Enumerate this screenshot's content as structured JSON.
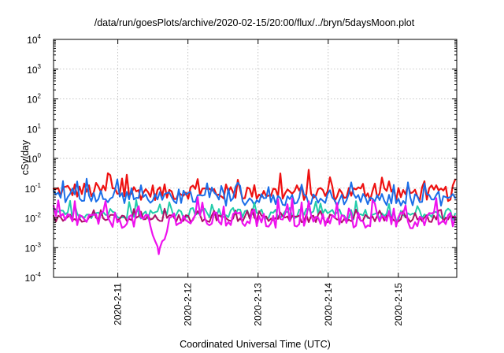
{
  "chart_data": {
    "type": "line",
    "title": "/data/run/goesPlots/archive/2020-02-15/20:00/flux/../bryn/5daysMoon.plot",
    "xlabel": "Coordinated Universal Time (UTC)",
    "ylabel": "cSv/day",
    "xlim": [
      "2020-02-10T02:00",
      "2020-02-15T20:00"
    ],
    "ylim": [
      0.0001,
      10000
    ],
    "yscale": "log",
    "grid": true,
    "legend": "none",
    "x_ticks": [
      "2020-2-11",
      "2020-2-12",
      "2020-2-13",
      "2020-2-14",
      "2020-2-15"
    ],
    "y_ticks": [
      {
        "base": "10",
        "exp": "-4",
        "value": 0.0001
      },
      {
        "base": "10",
        "exp": "-3",
        "value": 0.001
      },
      {
        "base": "10",
        "exp": "-2",
        "value": 0.01
      },
      {
        "base": "10",
        "exp": "-1",
        "value": 0.1
      },
      {
        "base": "10",
        "exp": "0",
        "value": 1
      },
      {
        "base": "10",
        "exp": "1",
        "value": 10
      },
      {
        "base": "10",
        "exp": "2",
        "value": 100
      },
      {
        "base": "10",
        "exp": "3",
        "value": 1000
      },
      {
        "base": "10",
        "exp": "4",
        "value": 10000
      }
    ],
    "series": [
      {
        "color": "#ee1111",
        "x": [
          "2020-02-10T02:00",
          "2020-02-10T10:00",
          "2020-02-10T18:00",
          "2020-02-11T02:00",
          "2020-02-11T10:00",
          "2020-02-11T18:00",
          "2020-02-12T02:00",
          "2020-02-12T10:00",
          "2020-02-12T18:00",
          "2020-02-13T02:00",
          "2020-02-13T10:00",
          "2020-02-13T18:00",
          "2020-02-14T02:00",
          "2020-02-14T10:00",
          "2020-02-14T18:00",
          "2020-02-15T02:00",
          "2020-02-15T10:00",
          "2020-02-15T20:00"
        ],
        "values": [
          0.065,
          0.07,
          0.068,
          0.06,
          0.062,
          0.058,
          0.07,
          0.06,
          0.062,
          0.06,
          0.058,
          0.06,
          0.056,
          0.058,
          0.055,
          0.058,
          0.056,
          0.055
        ]
      },
      {
        "color": "#1a6ee8",
        "x": [
          "2020-02-10T02:00",
          "2020-02-10T10:00",
          "2020-02-10T18:00",
          "2020-02-11T02:00",
          "2020-02-11T10:00",
          "2020-02-11T18:00",
          "2020-02-12T02:00",
          "2020-02-12T10:00",
          "2020-02-12T18:00",
          "2020-02-13T02:00",
          "2020-02-13T10:00",
          "2020-02-13T18:00",
          "2020-02-14T02:00",
          "2020-02-14T10:00",
          "2020-02-14T18:00",
          "2020-02-15T02:00",
          "2020-02-15T10:00",
          "2020-02-15T20:00"
        ],
        "values": [
          0.045,
          0.048,
          0.05,
          0.042,
          0.04,
          0.038,
          0.04,
          0.037,
          0.036,
          0.035,
          0.034,
          0.035,
          0.034,
          0.034,
          0.033,
          0.034,
          0.034,
          0.034
        ]
      },
      {
        "color": "#22ccaa",
        "x": [
          "2020-02-10T02:00",
          "2020-02-10T10:00",
          "2020-02-10T18:00",
          "2020-02-11T02:00",
          "2020-02-11T10:00",
          "2020-02-11T18:00",
          "2020-02-12T02:00",
          "2020-02-12T10:00",
          "2020-02-12T18:00",
          "2020-02-13T02:00",
          "2020-02-13T10:00",
          "2020-02-13T18:00",
          "2020-02-14T02:00",
          "2020-02-14T10:00",
          "2020-02-14T18:00",
          "2020-02-15T02:00",
          "2020-02-15T10:00",
          "2020-02-15T20:00"
        ],
        "values": [
          0.011,
          0.012,
          0.013,
          0.013,
          0.012,
          0.012,
          0.013,
          0.012,
          0.012,
          0.012,
          0.012,
          0.012,
          0.012,
          0.011,
          0.011,
          0.011,
          0.011,
          0.011
        ]
      },
      {
        "color": "#aa1166",
        "x": [
          "2020-02-10T02:00",
          "2020-02-10T10:00",
          "2020-02-10T18:00",
          "2020-02-11T02:00",
          "2020-02-11T10:00",
          "2020-02-11T18:00",
          "2020-02-12T02:00",
          "2020-02-12T10:00",
          "2020-02-12T18:00",
          "2020-02-13T02:00",
          "2020-02-13T10:00",
          "2020-02-13T18:00",
          "2020-02-14T02:00",
          "2020-02-14T10:00",
          "2020-02-14T18:00",
          "2020-02-15T02:00",
          "2020-02-15T10:00",
          "2020-02-15T20:00"
        ],
        "values": [
          0.0085,
          0.009,
          0.009,
          0.0088,
          0.0086,
          0.0088,
          0.009,
          0.0087,
          0.0087,
          0.0086,
          0.0085,
          0.0086,
          0.0085,
          0.0085,
          0.0084,
          0.0085,
          0.0085,
          0.0084
        ]
      },
      {
        "color": "#ee11ee",
        "x": [
          "2020-02-10T02:00",
          "2020-02-10T10:00",
          "2020-02-10T18:00",
          "2020-02-11T02:00",
          "2020-02-11T10:00",
          "2020-02-11T14:00",
          "2020-02-11T18:00",
          "2020-02-12T02:00",
          "2020-02-12T10:00",
          "2020-02-12T18:00",
          "2020-02-13T02:00",
          "2020-02-13T10:00",
          "2020-02-13T18:00",
          "2020-02-14T02:00",
          "2020-02-14T10:00",
          "2020-02-14T18:00",
          "2020-02-15T02:00",
          "2020-02-15T10:00",
          "2020-02-15T20:00"
        ],
        "values": [
          0.007,
          0.0075,
          0.0072,
          0.007,
          0.0068,
          0.0006,
          0.007,
          0.0072,
          0.007,
          0.0068,
          0.0069,
          0.0068,
          0.0068,
          0.0068,
          0.0068,
          0.0067,
          0.0067,
          0.0068,
          0.0067
        ]
      }
    ]
  }
}
